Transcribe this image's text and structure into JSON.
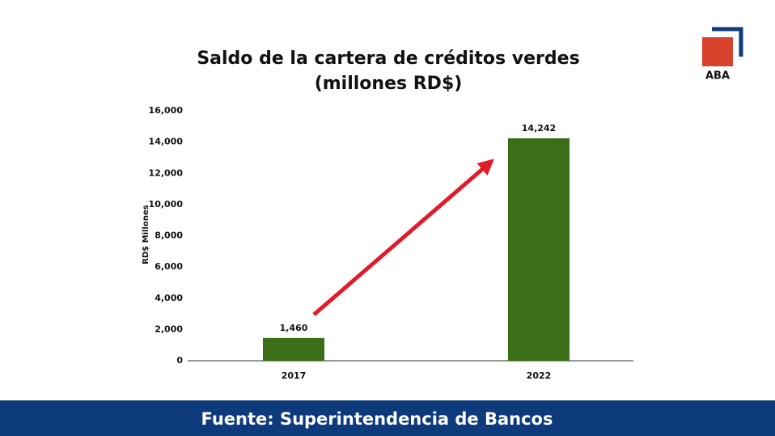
{
  "chart_data": {
    "type": "bar",
    "title": "Saldo de la cartera de créditos verdes",
    "subtitle": "(millones RD$)",
    "y_label": "RD$ Millones",
    "categories": [
      "2017",
      "2022"
    ],
    "values": [
      1460,
      14242
    ],
    "value_labels": [
      "1,460",
      "14,242"
    ],
    "color": "#3a6e17",
    "ylim": [
      0,
      16000
    ],
    "yticks": [
      0,
      {
        "value": 2000,
        "label": "2,000"
      },
      {
        "value": 4000,
        "label": "4,000"
      },
      {
        "value": 6000,
        "label": "6,000"
      },
      {
        "value": 8000,
        "label": "8,000"
      },
      {
        "value": 10000,
        "label": "10,000"
      },
      {
        "value": 12000,
        "label": "12,000"
      },
      {
        "value": 14000,
        "label": "14,000"
      },
      {
        "value": 16000,
        "label": "16,000"
      }
    ],
    "grid": false
  },
  "logo": "ABA",
  "footer": "Fuente: Superintendencia de Bancos"
}
